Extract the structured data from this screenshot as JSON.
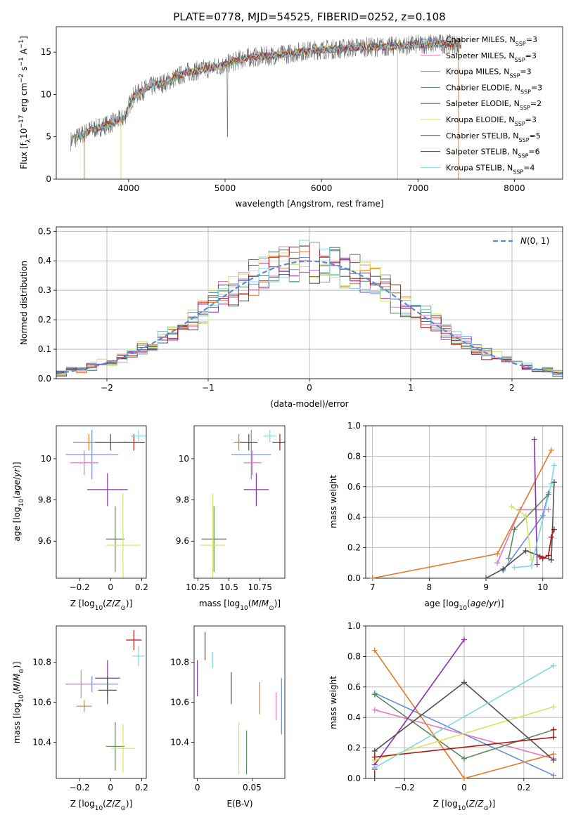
{
  "title": "PLATE=0778, MJD=54525, FIBERID=0252, z=0.108",
  "colors": {
    "Chabrier MILES": "#6a8fd6",
    "Salpeter MILES": "#e377c2",
    "Kroupa MILES": "#e07b2a",
    "Chabrier ELODIE": "#5a8a5a",
    "Salpeter ELODIE": "#8e2fb0",
    "Kroupa ELODIE": "#d4e65a",
    "Chabrier STELIB": "#505050",
    "Salpeter STELIB": "#b01818",
    "Kroupa STELIB": "#7fd8e0",
    "gaussian": "#5b8ad6"
  },
  "legend_spectrum": [
    {
      "key": "Chabrier MILES",
      "label": "Chabrier MILES, N",
      "sub": "SSP",
      "tail": "=3"
    },
    {
      "key": "Salpeter MILES",
      "label": "Salpeter MILES, N",
      "sub": "SSP",
      "tail": "=3"
    },
    {
      "key": "Kroupa MILES",
      "label": "Kroupa MILES, N",
      "sub": "SSP",
      "tail": "=3"
    },
    {
      "key": "Chabrier ELODIE",
      "label": "Chabrier ELODIE, N",
      "sub": "SSP",
      "tail": "=3"
    },
    {
      "key": "Salpeter ELODIE",
      "label": "Salpeter ELODIE, N",
      "sub": "SSP",
      "tail": "=2"
    },
    {
      "key": "Kroupa ELODIE",
      "label": "Kroupa ELODIE, N",
      "sub": "SSP",
      "tail": "=3"
    },
    {
      "key": "Chabrier STELIB",
      "label": "Chabrier STELIB, N",
      "sub": "SSP",
      "tail": "=5"
    },
    {
      "key": "Salpeter STELIB",
      "label": "Salpeter STELIB, N",
      "sub": "SSP",
      "tail": "=6"
    },
    {
      "key": "Kroupa STELIB",
      "label": "Kroupa STELIB, N",
      "sub": "SSP",
      "tail": "=4"
    }
  ],
  "chart_data": [
    {
      "type": "line",
      "name": "spectrum",
      "xlabel": "wavelength [Angstrom, rest frame]",
      "ylabel": "Flux [f_λ10^-17 erg cm^-2 s^-1 A^-1]",
      "xlim": [
        3250,
        8500
      ],
      "ylim": [
        0,
        18
      ],
      "xticks": [
        4000,
        5000,
        6000,
        7000,
        8000
      ],
      "yticks": [
        0,
        5,
        10,
        15
      ],
      "data_range": [
        3400,
        7450
      ],
      "continuum": [
        [
          3400,
          4.5
        ],
        [
          3600,
          5.8
        ],
        [
          3800,
          6.5
        ],
        [
          3950,
          7.2
        ],
        [
          4050,
          9.8
        ],
        [
          4200,
          10.8
        ],
        [
          4400,
          11.5
        ],
        [
          4600,
          12.6
        ],
        [
          4800,
          13.0
        ],
        [
          5000,
          13.5
        ],
        [
          5200,
          14.3
        ],
        [
          5400,
          14.5
        ],
        [
          5600,
          14.7
        ],
        [
          5800,
          15.1
        ],
        [
          6000,
          15.3
        ],
        [
          6200,
          15.4
        ],
        [
          6400,
          15.6
        ],
        [
          6600,
          15.6
        ],
        [
          6800,
          15.7
        ],
        [
          7000,
          15.9
        ],
        [
          7200,
          16.0
        ],
        [
          7450,
          15.9
        ]
      ]
    },
    {
      "type": "line",
      "name": "residuals",
      "xlabel": "(data-model)/error",
      "ylabel": "Normed distribution",
      "xlim": [
        -2.5,
        2.5
      ],
      "ylim": [
        0,
        0.515
      ],
      "xticks": [
        -2,
        -1,
        0,
        1,
        2
      ],
      "yticks": [
        0.0,
        0.1,
        0.2,
        0.3,
        0.4,
        0.5
      ],
      "grid": true,
      "legend": "N(0,1)",
      "legend_position": "top-right"
    },
    {
      "type": "scatter",
      "name": "age-vs-Z",
      "xlabel": "Z [log10(Z/Z⊙)]",
      "ylabel": "age [log10(age/yr)]",
      "xlim": [
        -0.35,
        0.23
      ],
      "ylim": [
        9.42,
        10.16
      ],
      "xticks": [
        -0.2,
        0.0,
        0.2
      ],
      "yticks": [
        9.6,
        9.8,
        10.0
      ],
      "points": [
        {
          "key": "Chabrier MILES",
          "x": -0.12,
          "y": 10.02,
          "xerr": 0.17,
          "yerr": 0.12
        },
        {
          "key": "Salpeter MILES",
          "x": -0.17,
          "y": 9.98,
          "xerr": 0.09,
          "yerr": 0.06
        },
        {
          "key": "Kroupa MILES",
          "x": -0.14,
          "y": 10.08,
          "xerr": 0.1,
          "yerr": 0.04
        },
        {
          "key": "Chabrier ELODIE",
          "x": 0.03,
          "y": 9.61,
          "xerr": 0.06,
          "yerr": 0.16
        },
        {
          "key": "Salpeter ELODIE",
          "x": -0.02,
          "y": 9.85,
          "xerr": 0.13,
          "yerr": 0.08
        },
        {
          "key": "Kroupa ELODIE",
          "x": 0.08,
          "y": 9.58,
          "xerr": 0.11,
          "yerr": 0.25
        },
        {
          "key": "Chabrier STELIB",
          "x": 0.0,
          "y": 10.08,
          "xerr": 0.1,
          "yerr": 0.04
        },
        {
          "key": "Salpeter STELIB",
          "x": 0.15,
          "y": 10.08,
          "xerr": 0.07,
          "yerr": 0.04
        },
        {
          "key": "Kroupa STELIB",
          "x": 0.18,
          "y": 10.11,
          "xerr": 0.05,
          "yerr": 0.03
        }
      ]
    },
    {
      "type": "scatter",
      "name": "age-vs-mass",
      "xlabel": "mass [log10(M/M⊙)]",
      "ylabel": "",
      "xlim": [
        10.22,
        10.95
      ],
      "ylim": [
        9.42,
        10.16
      ],
      "xticks": [
        10.25,
        10.5,
        10.75
      ],
      "yticks": [
        9.6,
        9.8,
        10.0
      ],
      "points": [
        {
          "key": "Chabrier MILES",
          "x": 10.68,
          "y": 10.02,
          "xerr": 0.16,
          "yerr": 0.12
        },
        {
          "key": "Salpeter MILES",
          "x": 10.69,
          "y": 9.98,
          "xerr": 0.07,
          "yerr": 0.06
        },
        {
          "key": "Kroupa MILES",
          "x": 10.58,
          "y": 10.08,
          "xerr": 0.04,
          "yerr": 0.04
        },
        {
          "key": "Chabrier ELODIE",
          "x": 10.38,
          "y": 9.61,
          "xerr": 0.1,
          "yerr": 0.16
        },
        {
          "key": "Salpeter ELODIE",
          "x": 10.72,
          "y": 9.85,
          "xerr": 0.1,
          "yerr": 0.08
        },
        {
          "key": "Kroupa ELODIE",
          "x": 10.37,
          "y": 9.58,
          "xerr": 0.1,
          "yerr": 0.25
        },
        {
          "key": "Chabrier STELIB",
          "x": 10.66,
          "y": 10.08,
          "xerr": 0.07,
          "yerr": 0.04
        },
        {
          "key": "Salpeter STELIB",
          "x": 10.91,
          "y": 10.08,
          "xerr": 0.06,
          "yerr": 0.04
        },
        {
          "key": "Kroupa STELIB",
          "x": 10.83,
          "y": 10.11,
          "xerr": 0.05,
          "yerr": 0.03
        }
      ]
    },
    {
      "type": "line",
      "name": "mass-weight-vs-age",
      "xlabel": "age [log10(age/yr)]",
      "ylabel": "mass weight",
      "xlim": [
        6.88,
        10.35
      ],
      "ylim": [
        0,
        1.0
      ],
      "xticks": [
        7,
        8,
        9,
        10
      ],
      "yticks": [
        0.0,
        0.2,
        0.4,
        0.6,
        0.8,
        1.0
      ],
      "grid": true,
      "series": [
        {
          "key": "Chabrier MILES",
          "x": [
            9.3,
            10.0,
            10.1
          ],
          "y": [
            0.05,
            0.41,
            0.56
          ]
        },
        {
          "key": "Salpeter MILES",
          "x": [
            9.2,
            9.6,
            10.1
          ],
          "y": [
            0.1,
            0.45,
            0.45
          ]
        },
        {
          "key": "Kroupa MILES",
          "x": [
            7.0,
            9.2,
            10.15
          ],
          "y": [
            0.0,
            0.16,
            0.84
          ]
        },
        {
          "key": "Chabrier ELODIE",
          "x": [
            9.4,
            9.5,
            10.1
          ],
          "y": [
            0.13,
            0.32,
            0.55
          ]
        },
        {
          "key": "Salpeter ELODIE",
          "x": [
            9.9,
            9.85
          ],
          "y": [
            0.09,
            0.91
          ]
        },
        {
          "key": "Kroupa ELODIE",
          "x": [
            9.45,
            9.7,
            9.8
          ],
          "y": [
            0.47,
            0.41,
            0.12
          ]
        },
        {
          "key": "Chabrier STELIB",
          "x": [
            9.0,
            9.3,
            9.7,
            10.15,
            10.2
          ],
          "y": [
            0.0,
            0.06,
            0.18,
            0.12,
            0.63
          ]
        },
        {
          "key": "Salpeter STELIB",
          "x": [
            9.95,
            10.0,
            10.1,
            10.15,
            10.2
          ],
          "y": [
            0.14,
            0.13,
            0.15,
            0.27,
            0.32
          ]
        },
        {
          "key": "Kroupa STELIB",
          "x": [
            9.5,
            9.8,
            10.15,
            10.2
          ],
          "y": [
            0.07,
            0.08,
            0.62,
            0.74
          ]
        }
      ]
    },
    {
      "type": "scatter",
      "name": "mass-vs-Z",
      "xlabel": "Z [log10(Z/Z⊙)]",
      "ylabel": "mass [log10(M/M⊙)]",
      "xlim": [
        -0.35,
        0.23
      ],
      "ylim": [
        10.22,
        10.98
      ],
      "xticks": [
        -0.2,
        0.0,
        0.2
      ],
      "yticks": [
        10.4,
        10.6,
        10.8
      ],
      "points": [
        {
          "key": "Chabrier MILES",
          "x": -0.12,
          "y": 10.69,
          "xerr": 0.17,
          "yerr": 0.04
        },
        {
          "key": "Salpeter MILES",
          "x": -0.19,
          "y": 10.69,
          "xerr": 0.09,
          "yerr": 0.07
        },
        {
          "key": "Kroupa MILES",
          "x": -0.17,
          "y": 10.58,
          "xerr": 0.05,
          "yerr": 0.03
        },
        {
          "key": "Chabrier ELODIE",
          "x": 0.03,
          "y": 10.38,
          "xerr": 0.06,
          "yerr": 0.12
        },
        {
          "key": "Salpeter ELODIE",
          "x": -0.02,
          "y": 10.72,
          "xerr": 0.08,
          "yerr": 0.09
        },
        {
          "key": "Kroupa ELODIE",
          "x": 0.08,
          "y": 10.37,
          "xerr": 0.08,
          "yerr": 0.12
        },
        {
          "key": "Chabrier STELIB",
          "x": -0.02,
          "y": 10.66,
          "xerr": 0.06,
          "yerr": 0.07
        },
        {
          "key": "Salpeter STELIB",
          "x": 0.15,
          "y": 10.91,
          "xerr": 0.05,
          "yerr": 0.05
        },
        {
          "key": "Kroupa STELIB",
          "x": 0.18,
          "y": 10.83,
          "xerr": 0.04,
          "yerr": 0.05
        }
      ]
    },
    {
      "type": "scatter",
      "name": "mass-vs-EBV",
      "xlabel": "E(B-V)",
      "ylabel": "",
      "xlim": [
        -0.003,
        0.08
      ],
      "ylim": [
        10.22,
        10.98
      ],
      "xticks": [
        0.0,
        0.05
      ],
      "yticks": [
        10.4,
        10.6,
        10.8
      ],
      "points": [
        {
          "key": "Chabrier MILES",
          "x": 0.077,
          "y": 10.58,
          "xerr": 0,
          "yerr": 0.14
        },
        {
          "key": "Salpeter MILES",
          "x": 0.072,
          "y": 10.58,
          "xerr": 0,
          "yerr": 0.07
        },
        {
          "key": "Kroupa MILES",
          "x": 0.057,
          "y": 10.62,
          "xerr": 0,
          "yerr": 0.08
        },
        {
          "key": "Chabrier ELODIE",
          "x": 0.045,
          "y": 10.35,
          "xerr": 0,
          "yerr": 0.11
        },
        {
          "key": "Salpeter ELODIE",
          "x": 0.0,
          "y": 10.72,
          "xerr": 0,
          "yerr": 0.09
        },
        {
          "key": "Kroupa ELODIE",
          "x": 0.038,
          "y": 10.37,
          "xerr": 0,
          "yerr": 0.13
        },
        {
          "key": "Chabrier STELIB",
          "x": 0.031,
          "y": 10.67,
          "xerr": 0,
          "yerr": 0.08
        },
        {
          "key": "Salpeter STELIB",
          "x": 0.007,
          "y": 10.88,
          "xerr": 0,
          "yerr": 0.07
        },
        {
          "key": "Kroupa STELIB",
          "x": 0.014,
          "y": 10.81,
          "xerr": 0,
          "yerr": 0.04
        }
      ]
    },
    {
      "type": "line",
      "name": "mass-weight-vs-Z",
      "xlabel": "Z [log10(Z/Z⊙)]",
      "ylabel": "mass weight",
      "xlim": [
        -0.33,
        0.33
      ],
      "ylim": [
        0,
        1.0
      ],
      "xticks": [
        -0.2,
        0.0,
        0.2
      ],
      "yticks": [
        0.0,
        0.2,
        0.4,
        0.6,
        0.8,
        1.0
      ],
      "grid": true,
      "series": [
        {
          "key": "Chabrier MILES",
          "x": [
            -0.3,
            0.3
          ],
          "y": [
            0.56,
            0.02
          ]
        },
        {
          "key": "Salpeter MILES",
          "x": [
            -0.3,
            0.3
          ],
          "y": [
            0.45,
            0.13
          ]
        },
        {
          "key": "Kroupa MILES",
          "x": [
            -0.3,
            0.0,
            0.3
          ],
          "y": [
            0.84,
            0.0,
            0.16
          ]
        },
        {
          "key": "Chabrier ELODIE",
          "x": [
            -0.3,
            0.0,
            0.3
          ],
          "y": [
            0.55,
            0.13,
            0.32
          ]
        },
        {
          "key": "Salpeter ELODIE",
          "x": [
            -0.3,
            0.0
          ],
          "y": [
            0.09,
            0.91
          ]
        },
        {
          "key": "Kroupa ELODIE",
          "x": [
            -0.3,
            0.3
          ],
          "y": [
            0.12,
            0.47
          ]
        },
        {
          "key": "Chabrier STELIB",
          "x": [
            -0.3,
            -0.3,
            0.0,
            0.3
          ],
          "y": [
            0.0,
            0.18,
            0.63,
            0.12
          ]
        },
        {
          "key": "Salpeter STELIB",
          "x": [
            -0.3,
            -0.3,
            0.3,
            0.3
          ],
          "y": [
            0.06,
            0.14,
            0.27,
            0.32
          ]
        },
        {
          "key": "Kroupa STELIB",
          "x": [
            -0.3,
            0.3
          ],
          "y": [
            0.07,
            0.74
          ]
        }
      ]
    }
  ]
}
